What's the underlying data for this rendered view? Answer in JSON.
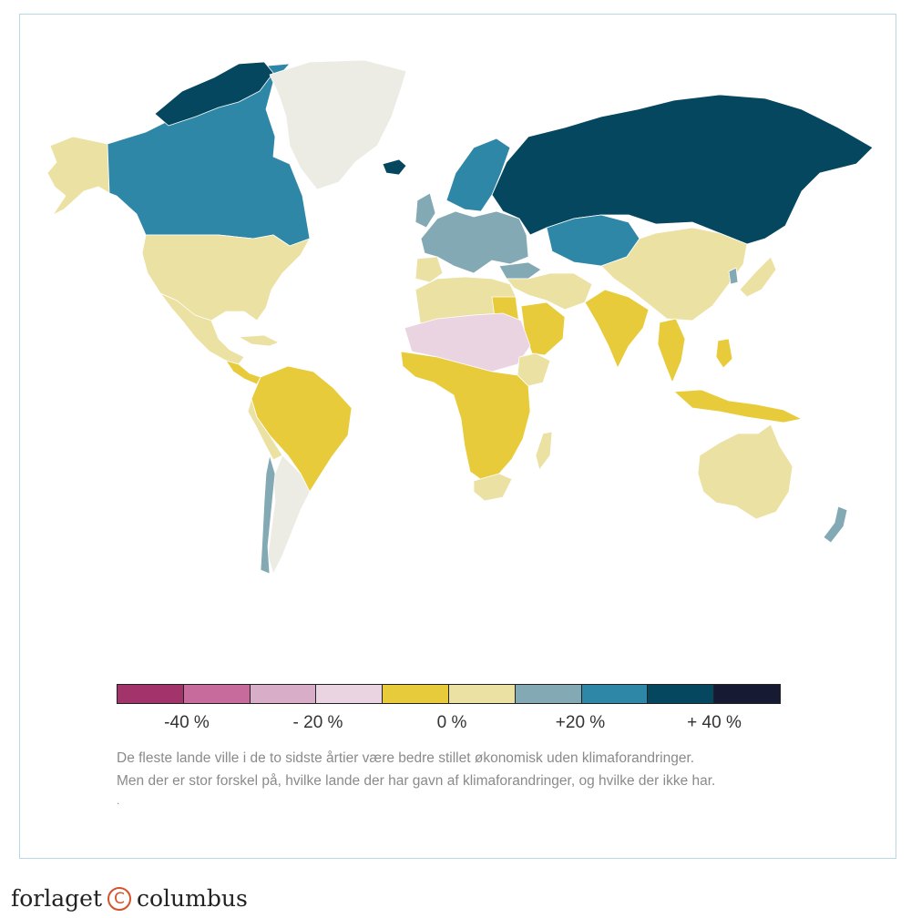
{
  "legend": {
    "colors": [
      "#a3336b",
      "#c76b9c",
      "#d8adc8",
      "#ead4e2",
      "#e8cb3a",
      "#ebe1a2",
      "#82a9b4",
      "#2e87a6",
      "#05475f",
      "#161a33"
    ],
    "ticks": [
      "-40 %",
      "- 20 %",
      "0 %",
      "+20 %",
      "+ 40 %"
    ]
  },
  "caption": {
    "line1": "De fleste lande ville i de to sidste årtier være bedre stillet økonomisk uden klimaforandringer.",
    "line2": "Men der er stor forskel på, hvilke lande der har gavn af klimaforandringer, og hvilke der ikke har.",
    "dot": "."
  },
  "brand": {
    "left": "forlaget",
    "mark": "C",
    "right": "columbus"
  },
  "map_colors": {
    "dark_teal": "#05475f",
    "teal": "#2e87a6",
    "gray_blue": "#82a9b4",
    "yellow": "#e8cb3a",
    "pale_yellow": "#ebe1a2",
    "pink_light": "#ead4e2",
    "neutral": "#ecebe4"
  }
}
